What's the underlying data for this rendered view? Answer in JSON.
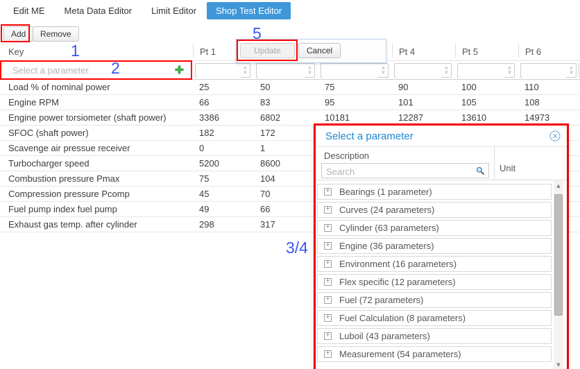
{
  "tabs": [
    {
      "label": "Edit ME",
      "active": false
    },
    {
      "label": "Meta Data Editor",
      "active": false
    },
    {
      "label": "Limit Editor",
      "active": false
    },
    {
      "label": "Shop Test Editor",
      "active": true
    }
  ],
  "toolbar": {
    "add_label": "Add",
    "remove_label": "Remove"
  },
  "edit_popover": {
    "update_label": "Update",
    "cancel_label": "Cancel",
    "update_disabled": true
  },
  "table": {
    "key_header": "Key",
    "filter_placeholder": "Select a parameter",
    "columns": [
      "Pt 1",
      "Pt 2",
      "Pt 3",
      "Pt 4",
      "Pt 5",
      "Pt 6"
    ],
    "rows": [
      {
        "key": "Load % of nominal power",
        "values": [
          "25",
          "50",
          "75",
          "90",
          "100",
          "110"
        ]
      },
      {
        "key": "Engine RPM",
        "values": [
          "66",
          "83",
          "95",
          "101",
          "105",
          "108"
        ]
      },
      {
        "key": "Engine power torsiometer (shaft power)",
        "values": [
          "3386",
          "6802",
          "10181",
          "12287",
          "13610",
          "14973"
        ]
      },
      {
        "key": "SFOC (shaft power)",
        "values": [
          "182",
          "172"
        ]
      },
      {
        "key": "Scavenge air pressue receiver",
        "values": [
          "0",
          "1"
        ]
      },
      {
        "key": "Turbocharger speed",
        "values": [
          "5200",
          "8600"
        ]
      },
      {
        "key": "Combustion pressure Pmax",
        "values": [
          "75",
          "104"
        ]
      },
      {
        "key": "Compression pressure Pcomp",
        "values": [
          "45",
          "70"
        ]
      },
      {
        "key": "Fuel pump index fuel pump",
        "values": [
          "49",
          "66"
        ]
      },
      {
        "key": "Exhaust gas temp. after cylinder",
        "values": [
          "298",
          "317"
        ]
      }
    ]
  },
  "dialog": {
    "title": "Select a parameter",
    "description_header": "Description",
    "search_placeholder": "Search",
    "unit_header": "Unit",
    "categories": [
      "Bearings (1 parameter)",
      "Curves (24 parameters)",
      "Cylinder (63 parameters)",
      "Engine (36 parameters)",
      "Environment (16 parameters)",
      "Flex specific (12 parameters)",
      "Fuel (72 parameters)",
      "Fuel Calculation (8 parameters)",
      "Luboil (43 parameters)",
      "Measurement (54 parameters)"
    ]
  },
  "annotations": {
    "step1": "1",
    "step2": "2",
    "step34": "3/4",
    "step5": "5"
  },
  "icons": {
    "expand_glyph": "+",
    "spinner_up_glyph": "∧",
    "spinner_down_glyph": "∨",
    "scroll_up_glyph": "▲",
    "scroll_down_glyph": "▼"
  },
  "colors": {
    "active_tab_blue": "#3e97d9",
    "dialog_title_blue": "#1e87d0",
    "annotation_red": "#ff0000",
    "annotation_blue": "#3b55ee",
    "add_icon_green": "#3fae49"
  }
}
